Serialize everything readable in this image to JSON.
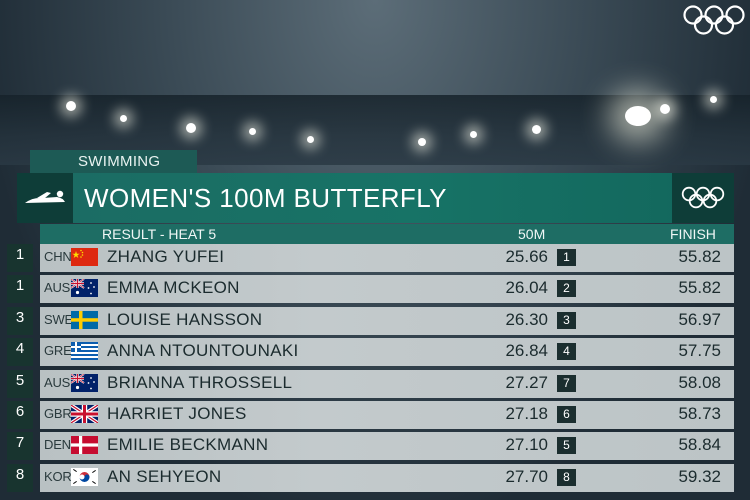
{
  "broadcast": {
    "category": "SWIMMING",
    "event_title": "WOMEN'S 100M BUTTERFLY",
    "subheader": {
      "heat_label": "RESULT - HEAT 5",
      "split_label": "50M",
      "finish_label": "FINISH"
    },
    "colors": {
      "title_green": "#177366",
      "badge_dark": "#0e3d38",
      "row_grey": "#c3cacc"
    },
    "icons": {
      "top_right": "olympic-rings-icon",
      "badge_left": "swimmer-icon",
      "badge_right": "olympic-rings-icon"
    }
  },
  "results": [
    {
      "rank": "1",
      "noc": "CHN",
      "flag": "china-flag",
      "name": "ZHANG YUFEI",
      "split": "25.66",
      "split_pos": "1",
      "finish": "55.82"
    },
    {
      "rank": "1",
      "noc": "AUS",
      "flag": "australia-flag",
      "name": "EMMA MCKEON",
      "split": "26.04",
      "split_pos": "2",
      "finish": "55.82"
    },
    {
      "rank": "3",
      "noc": "SWE",
      "flag": "sweden-flag",
      "name": "LOUISE HANSSON",
      "split": "26.30",
      "split_pos": "3",
      "finish": "56.97"
    },
    {
      "rank": "4",
      "noc": "GRE",
      "flag": "greece-flag",
      "name": "ANNA NTOUNTOUNAKI",
      "split": "26.84",
      "split_pos": "4",
      "finish": "57.75"
    },
    {
      "rank": "5",
      "noc": "AUS",
      "flag": "australia-flag",
      "name": "BRIANNA THROSSELL",
      "split": "27.27",
      "split_pos": "7",
      "finish": "58.08"
    },
    {
      "rank": "6",
      "noc": "GBR",
      "flag": "great-britain-flag",
      "name": "HARRIET JONES",
      "split": "27.18",
      "split_pos": "6",
      "finish": "58.73"
    },
    {
      "rank": "7",
      "noc": "DEN",
      "flag": "denmark-flag",
      "name": "EMILIE BECKMANN",
      "split": "27.10",
      "split_pos": "5",
      "finish": "58.84"
    },
    {
      "rank": "8",
      "noc": "KOR",
      "flag": "korea-flag",
      "name": "AN SEHYEON",
      "split": "27.70",
      "split_pos": "8",
      "finish": "59.32"
    }
  ]
}
